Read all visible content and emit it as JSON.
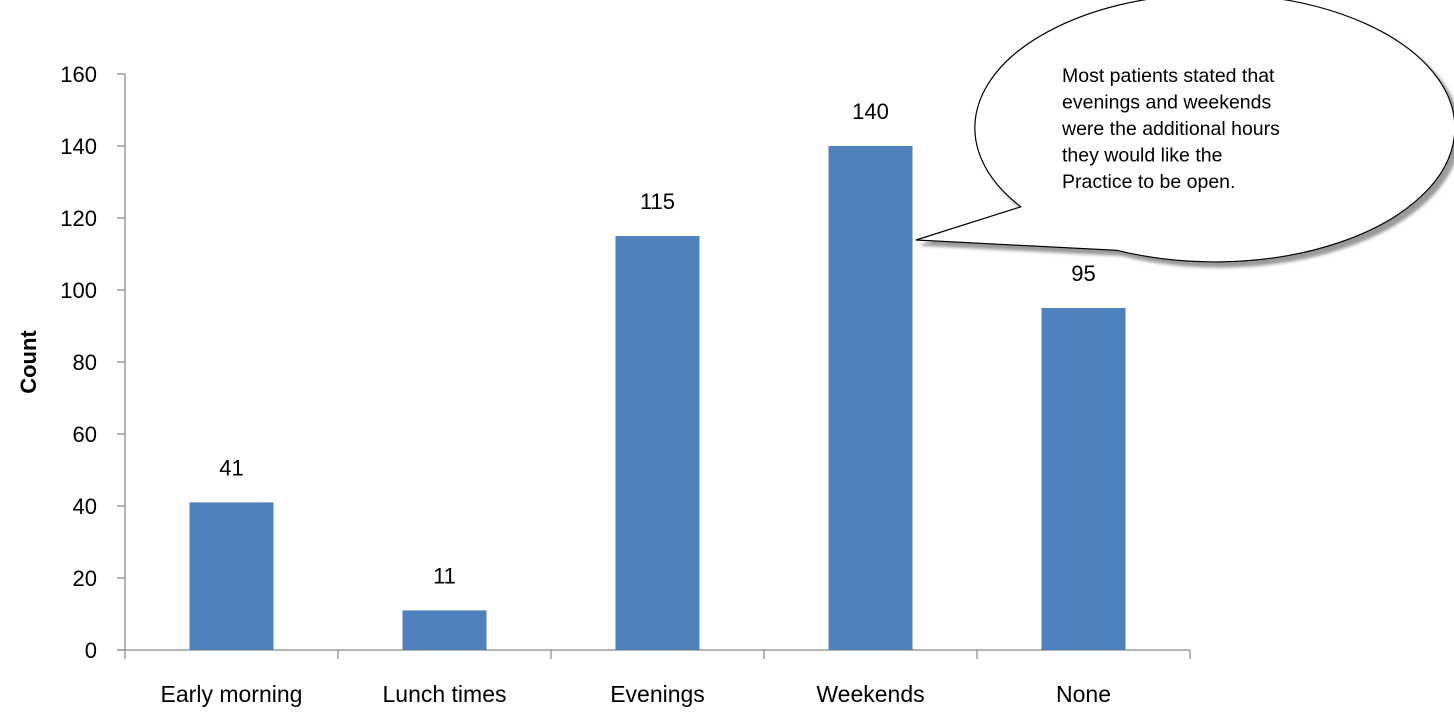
{
  "chart_data": {
    "type": "bar",
    "title": "",
    "xlabel": "",
    "ylabel": "Count",
    "categories": [
      "Early morning",
      "Lunch times",
      "Evenings",
      "Weekends",
      "None"
    ],
    "values": [
      41,
      11,
      115,
      140,
      95
    ],
    "ylim": [
      0,
      160
    ],
    "yticks": [
      0,
      20,
      40,
      60,
      80,
      100,
      120,
      140,
      160
    ],
    "ytick_labels": [
      "0",
      "20",
      "40",
      "60",
      "80",
      "100",
      "120",
      "140",
      "160"
    ],
    "data_labels": [
      "41",
      "11",
      "115",
      "140",
      "95"
    ],
    "bar_color": "#4f81bd",
    "grid": false,
    "legend": "none",
    "annotation": {
      "lines": [
        "Most patients stated that",
        "evenings and weekends",
        "were the additional hours",
        "they would like the",
        "Practice to be open."
      ],
      "points_to": "Weekends"
    }
  }
}
